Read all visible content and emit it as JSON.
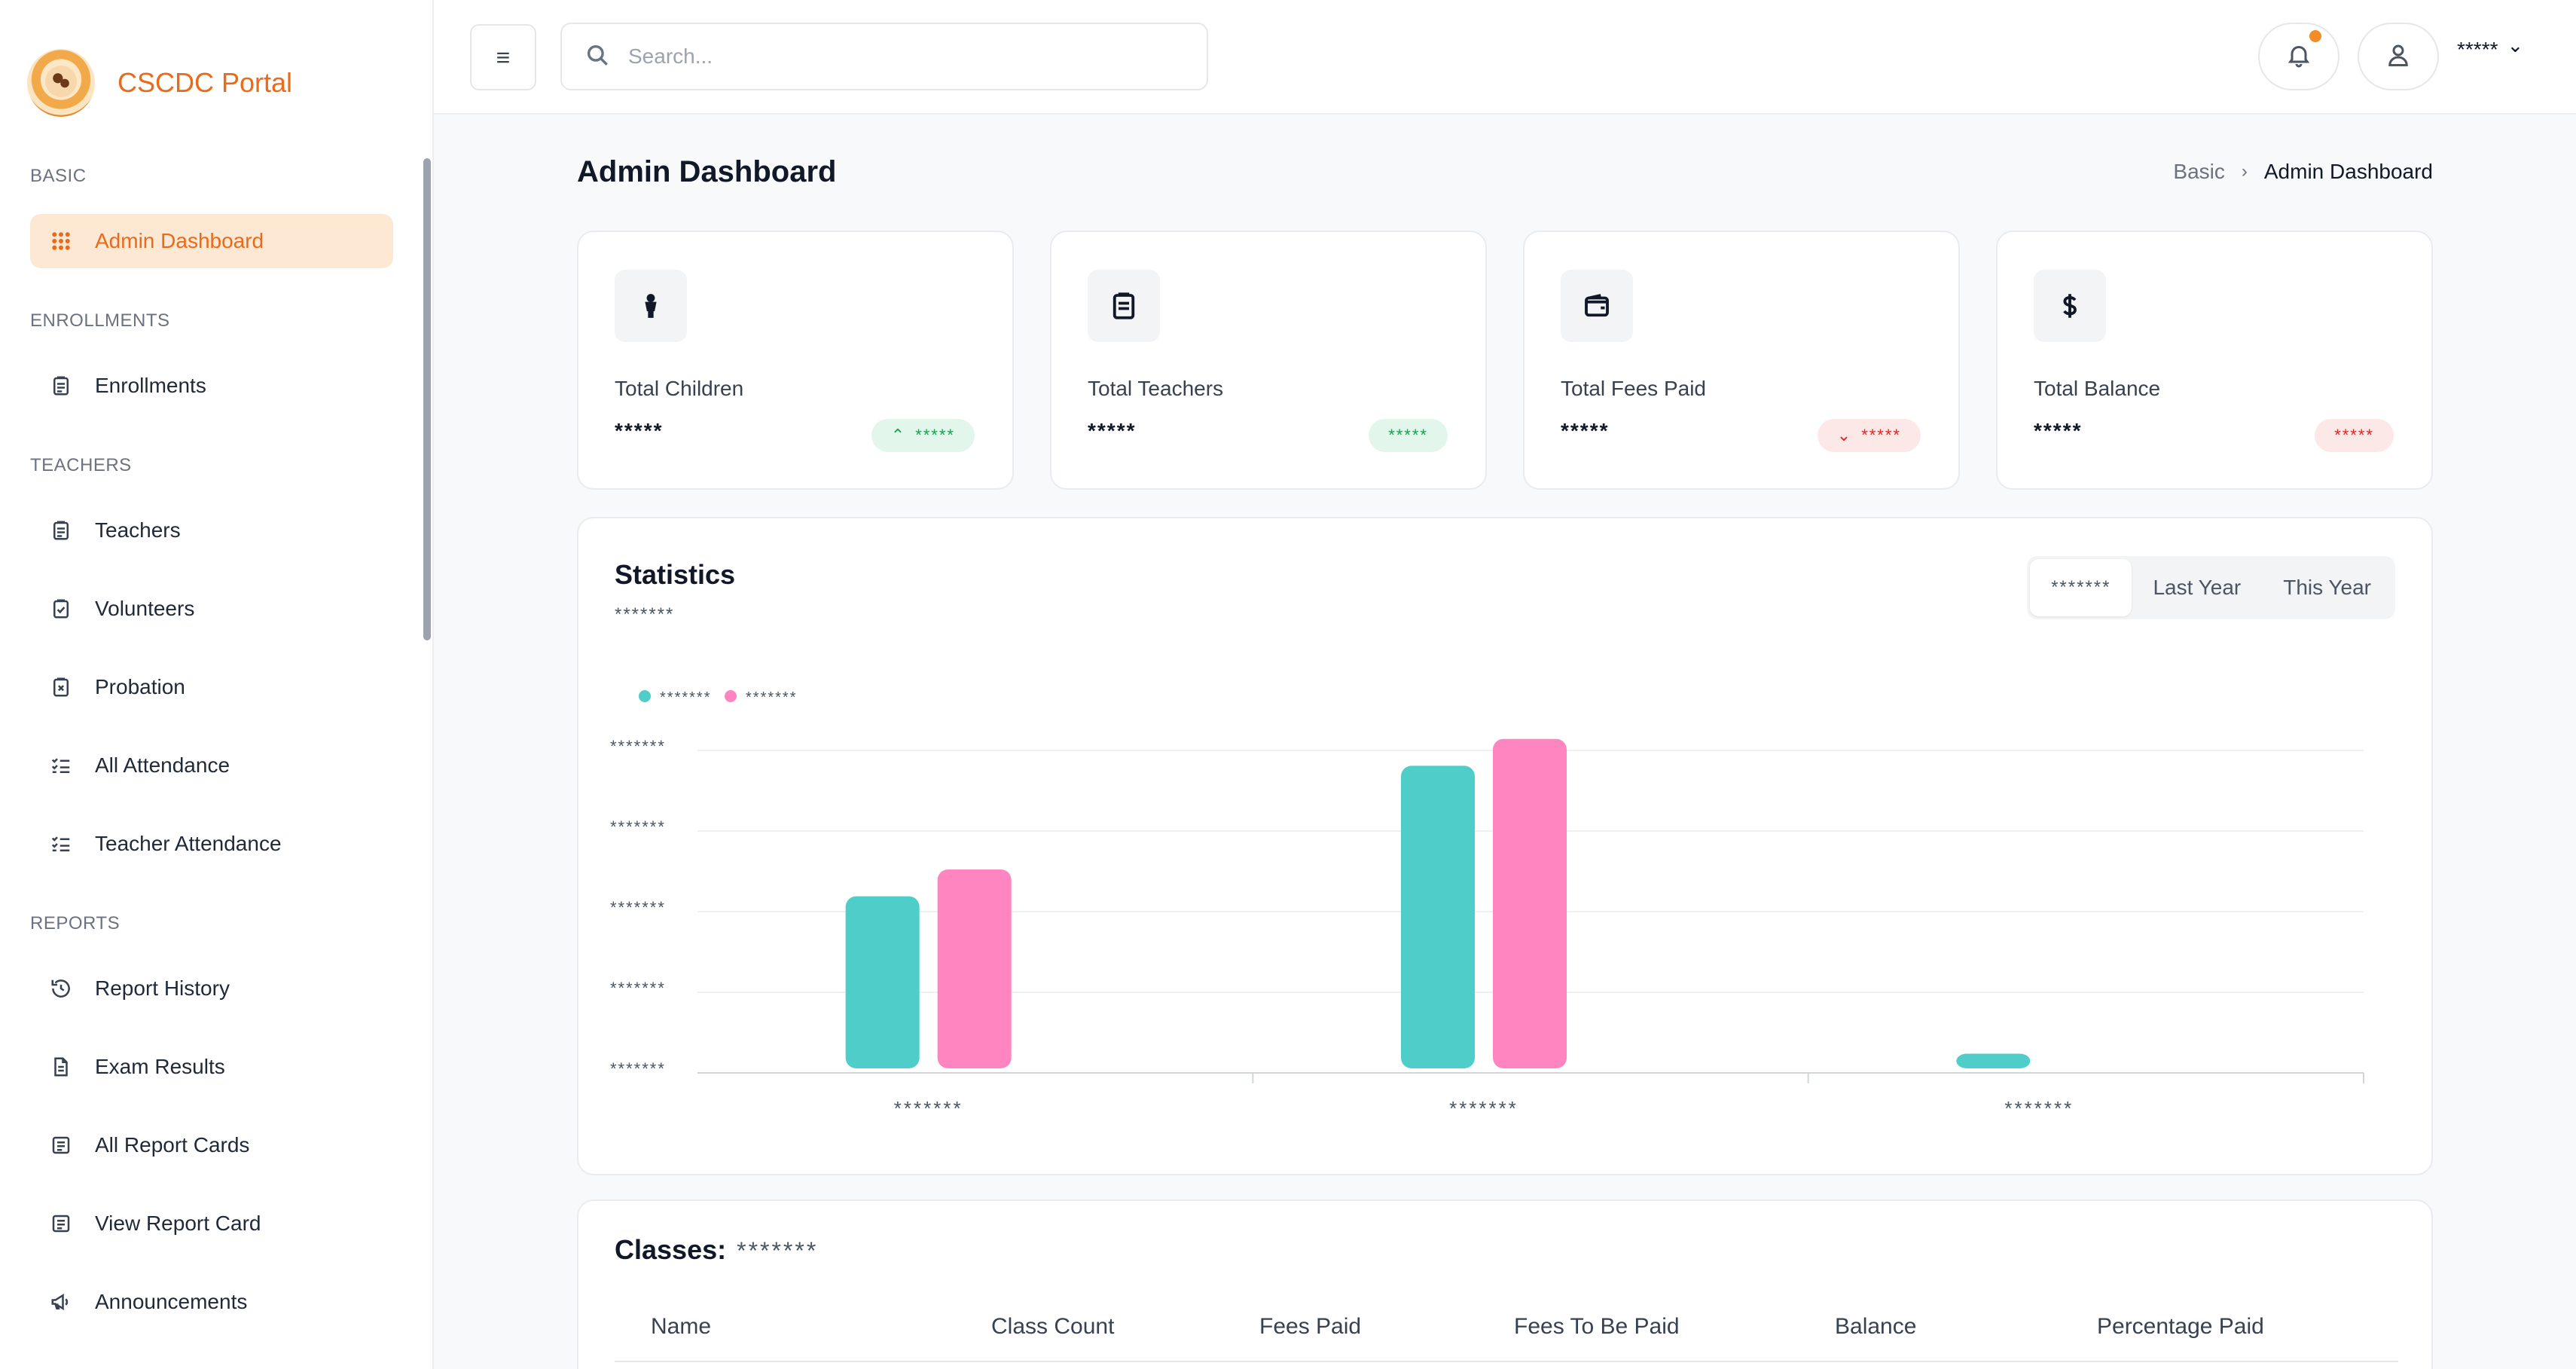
{
  "brand": {
    "title": "CSCDC Portal"
  },
  "sidebar": {
    "sections": [
      {
        "label": "BASIC"
      },
      {
        "label": "ENROLLMENTS"
      },
      {
        "label": "TEACHERS"
      },
      {
        "label": "REPORTS"
      }
    ],
    "items": [
      {
        "label": "Admin Dashboard",
        "icon": "grid-icon"
      },
      {
        "label": "Enrollments",
        "icon": "clipboard-icon"
      },
      {
        "label": "Teachers",
        "icon": "clipboard-icon"
      },
      {
        "label": "Volunteers",
        "icon": "clipboard-check-icon"
      },
      {
        "label": "Probation",
        "icon": "clipboard-x-icon"
      },
      {
        "label": "All Attendance",
        "icon": "checklist-icon"
      },
      {
        "label": "Teacher Attendance",
        "icon": "checklist-icon"
      },
      {
        "label": "Report History",
        "icon": "history-icon"
      },
      {
        "label": "Exam Results",
        "icon": "document-icon"
      },
      {
        "label": "All Report Cards",
        "icon": "list-document-icon"
      },
      {
        "label": "View Report Card",
        "icon": "list-document-icon"
      },
      {
        "label": "Announcements",
        "icon": "megaphone-icon"
      }
    ]
  },
  "header": {
    "menu_glyph": "≡",
    "search_placeholder": "Search...",
    "user_name": "*****",
    "caret": "⌄"
  },
  "page": {
    "title": "Admin Dashboard",
    "breadcrumb": {
      "root": "Basic",
      "sep": "›",
      "current": "Admin Dashboard"
    }
  },
  "cards": [
    {
      "label": "Total Children",
      "value": "*****",
      "badge": "*****",
      "trend": "up",
      "badge_color": "green",
      "icon": "person-icon"
    },
    {
      "label": "Total Teachers",
      "value": "*****",
      "badge": "*****",
      "trend": "none",
      "badge_color": "green",
      "icon": "clipboard-icon"
    },
    {
      "label": "Total Fees Paid",
      "value": "*****",
      "badge": "*****",
      "trend": "down",
      "badge_color": "red",
      "icon": "wallet-icon"
    },
    {
      "label": "Total Balance",
      "value": "*****",
      "badge": "*****",
      "trend": "none",
      "badge_color": "red",
      "icon": "dollar-icon"
    }
  ],
  "statistics": {
    "title": "Statistics",
    "subtitle": "*******",
    "periods": [
      {
        "label": "*******",
        "active": true
      },
      {
        "label": "Last Year",
        "active": false
      },
      {
        "label": "This Year",
        "active": false
      }
    ]
  },
  "chart_data": {
    "type": "bar",
    "title": "Statistics",
    "categories": [
      "*******",
      "*******",
      "*******"
    ],
    "series": [
      {
        "name": "*******",
        "color": "#4ecdc9",
        "values": [
          2.3,
          4.0,
          0.25
        ]
      },
      {
        "name": "*******",
        "color": "#ff85c0",
        "values": [
          2.65,
          4.35,
          0
        ]
      }
    ],
    "ylim": [
      0,
      4.2
    ],
    "y_ticks": [
      "*******",
      "*******",
      "*******",
      "*******",
      "*******"
    ],
    "grid": true,
    "legend": "top-left"
  },
  "classes": {
    "title": "Classes:",
    "subtitle": "*******",
    "columns": [
      "Name",
      "Class Count",
      "Fees Paid",
      "Fees To Be Paid",
      "Balance",
      "Percentage Paid"
    ]
  }
}
